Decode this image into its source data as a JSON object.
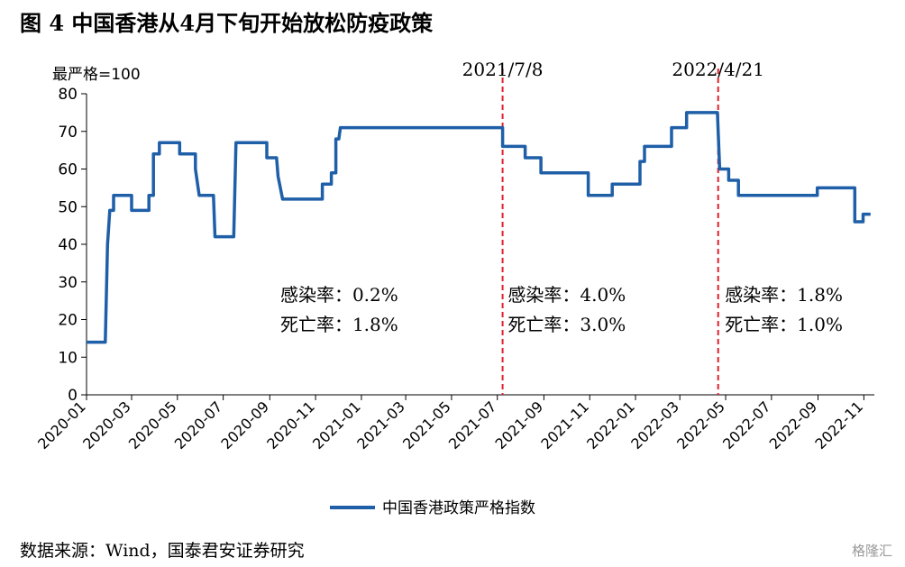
{
  "figure": {
    "title": "图 4 中国香港从4月下旬开始放松防疫政策",
    "source": "数据来源：Wind，国泰君安证券研究",
    "watermark": "格隆汇"
  },
  "chart_data": {
    "type": "line",
    "unit_label": "最严格=100",
    "ylim": [
      0,
      80
    ],
    "yticks": [
      0,
      10,
      20,
      30,
      40,
      50,
      60,
      70,
      80
    ],
    "xlim": [
      "2020-01-01",
      "2022-11-15"
    ],
    "xticks": [
      "2020-01",
      "2020-03",
      "2020-05",
      "2020-07",
      "2020-09",
      "2020-11",
      "2021-01",
      "2021-03",
      "2021-05",
      "2021-07",
      "2021-09",
      "2021-11",
      "2022-01",
      "2022-03",
      "2022-05",
      "2022-07",
      "2022-09",
      "2022-11"
    ],
    "grid": false,
    "legend_position": "bottom",
    "series": [
      {
        "name": "中国香港政策严格指数",
        "color": "#1f5fa8",
        "points": [
          [
            "2020-01-01",
            14
          ],
          [
            "2020-01-26",
            14
          ],
          [
            "2020-01-29",
            40
          ],
          [
            "2020-02-01",
            49
          ],
          [
            "2020-02-06",
            49
          ],
          [
            "2020-02-06",
            53
          ],
          [
            "2020-03-01",
            53
          ],
          [
            "2020-03-01",
            49
          ],
          [
            "2020-03-24",
            49
          ],
          [
            "2020-03-24",
            53
          ],
          [
            "2020-03-30",
            53
          ],
          [
            "2020-03-30",
            64
          ],
          [
            "2020-04-07",
            64
          ],
          [
            "2020-04-07",
            67
          ],
          [
            "2020-05-04",
            67
          ],
          [
            "2020-05-04",
            64
          ],
          [
            "2020-05-25",
            64
          ],
          [
            "2020-05-25",
            60
          ],
          [
            "2020-05-30",
            53
          ],
          [
            "2020-06-18",
            53
          ],
          [
            "2020-06-20",
            42
          ],
          [
            "2020-07-15",
            42
          ],
          [
            "2020-07-18",
            67
          ],
          [
            "2020-08-28",
            67
          ],
          [
            "2020-08-28",
            63
          ],
          [
            "2020-09-10",
            63
          ],
          [
            "2020-09-12",
            58
          ],
          [
            "2020-09-18",
            52
          ],
          [
            "2020-11-10",
            52
          ],
          [
            "2020-11-10",
            56
          ],
          [
            "2020-11-22",
            56
          ],
          [
            "2020-11-22",
            59
          ],
          [
            "2020-11-28",
            59
          ],
          [
            "2020-11-28",
            68
          ],
          [
            "2020-12-02",
            68
          ],
          [
            "2020-12-04",
            71
          ],
          [
            "2021-07-08",
            71
          ],
          [
            "2021-07-08",
            66
          ],
          [
            "2021-08-07",
            66
          ],
          [
            "2021-08-07",
            63
          ],
          [
            "2021-08-28",
            63
          ],
          [
            "2021-08-28",
            59
          ],
          [
            "2021-10-30",
            59
          ],
          [
            "2021-10-30",
            53
          ],
          [
            "2021-12-01",
            53
          ],
          [
            "2021-12-01",
            56
          ],
          [
            "2022-01-07",
            56
          ],
          [
            "2022-01-07",
            62
          ],
          [
            "2022-01-13",
            62
          ],
          [
            "2022-01-13",
            66
          ],
          [
            "2022-02-18",
            66
          ],
          [
            "2022-02-18",
            71
          ],
          [
            "2022-03-10",
            71
          ],
          [
            "2022-03-10",
            75
          ],
          [
            "2022-04-20",
            75
          ],
          [
            "2022-04-23",
            60
          ],
          [
            "2022-05-05",
            60
          ],
          [
            "2022-05-05",
            57
          ],
          [
            "2022-05-18",
            57
          ],
          [
            "2022-05-18",
            53
          ],
          [
            "2022-08-31",
            53
          ],
          [
            "2022-08-31",
            55
          ],
          [
            "2022-10-20",
            55
          ],
          [
            "2022-10-20",
            46
          ],
          [
            "2022-10-31",
            46
          ],
          [
            "2022-10-31",
            48
          ],
          [
            "2022-11-10",
            48
          ]
        ]
      }
    ],
    "markers": [
      {
        "date": "2021-07-08",
        "label": "2021/7/8",
        "color": "#e0202a"
      },
      {
        "date": "2022-04-21",
        "label": "2022/4/21",
        "color": "#e0202a"
      }
    ],
    "annotations": [
      {
        "anchor_date": "2020-09-15",
        "lines": [
          "感染率：0.2%",
          "死亡率：1.8%"
        ]
      },
      {
        "anchor_date": "2021-07-15",
        "lines": [
          "感染率：4.0%",
          "死亡率：3.0%"
        ]
      },
      {
        "anchor_date": "2022-04-30",
        "lines": [
          "感染率：1.8%",
          "死亡率：1.0%"
        ]
      }
    ]
  }
}
